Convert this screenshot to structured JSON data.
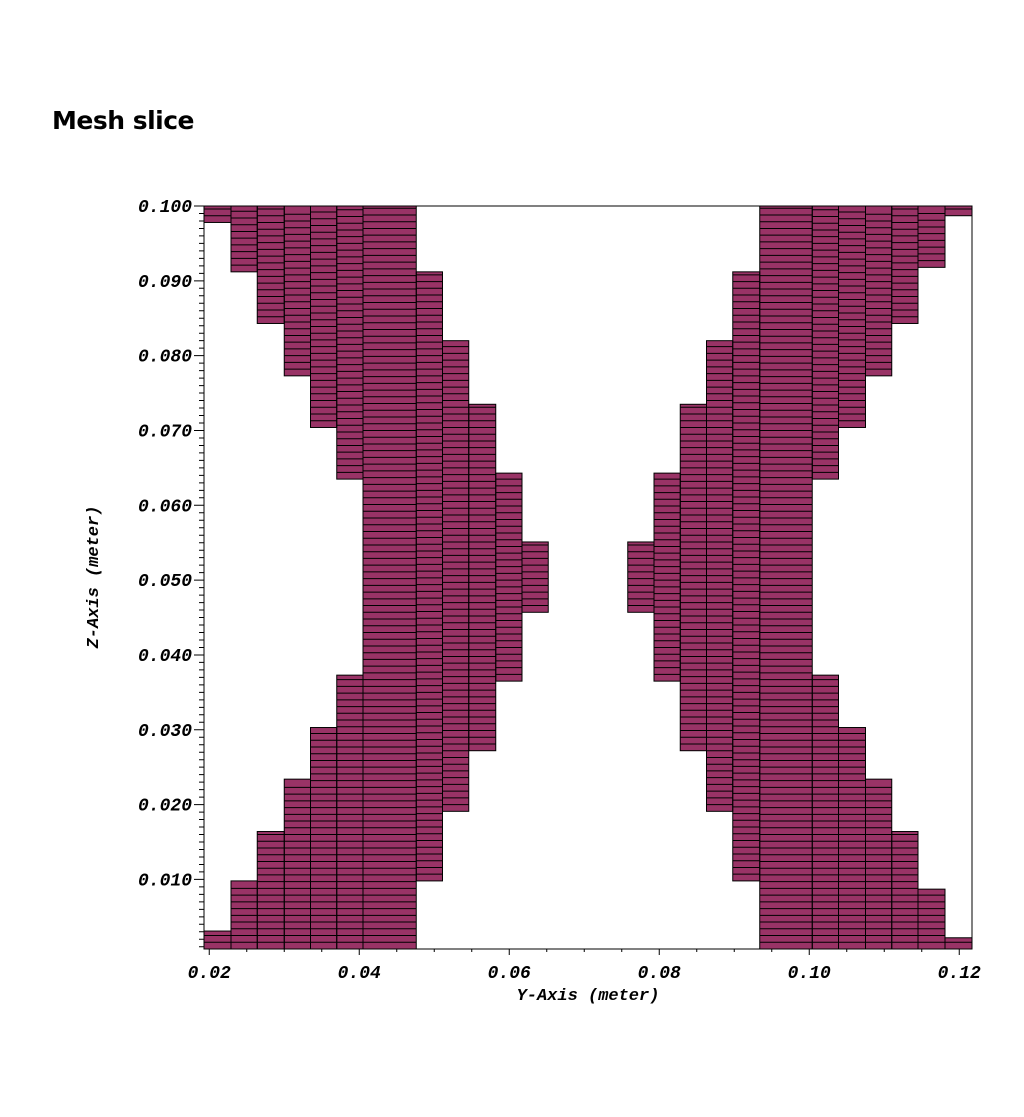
{
  "title": "Mesh slice",
  "chart_data": {
    "type": "mesh",
    "xlabel": "Y-Axis (meter)",
    "ylabel": "Z-Axis (meter)",
    "xlim": [
      0.0193,
      0.1217
    ],
    "ylim": [
      0.0007,
      0.1
    ],
    "x_ticks": [
      0.02,
      0.04,
      0.06,
      0.08,
      0.1,
      0.12
    ],
    "x_tick_labels": [
      "0.02",
      "0.04",
      "0.06",
      "0.08",
      "0.10",
      "0.12"
    ],
    "y_ticks": [
      0.01,
      0.02,
      0.03,
      0.04,
      0.05,
      0.06,
      0.07,
      0.08,
      0.09,
      0.1
    ],
    "y_tick_labels": [
      "0.010",
      "0.020",
      "0.030",
      "0.040",
      "0.050",
      "0.060",
      "0.070",
      "0.080",
      "0.090",
      "0.100"
    ],
    "fill_color": "#993366",
    "edge_color": "#000000",
    "row_height": 0.0009,
    "column_edges": [
      0.0193,
      0.0229,
      0.0264,
      0.03,
      0.0335,
      0.037,
      0.0405,
      0.0441,
      0.0476,
      0.0511,
      0.0546,
      0.0582,
      0.0617,
      0.0652,
      0.0758,
      0.0793,
      0.0828,
      0.0863,
      0.0898,
      0.0934,
      0.0969,
      0.1004,
      0.1039,
      0.1075,
      0.111,
      0.1145,
      0.1181,
      0.1217
    ],
    "regions": [
      {
        "y": [
          0.0193,
          0.0229
        ],
        "z": [
          [
            0.0007,
            0.0031
          ],
          [
            0.0978,
            0.1
          ]
        ]
      },
      {
        "y": [
          0.0229,
          0.0264
        ],
        "z": [
          [
            0.0007,
            0.0098
          ],
          [
            0.0912,
            0.1
          ]
        ]
      },
      {
        "y": [
          0.0264,
          0.03
        ],
        "z": [
          [
            0.0007,
            0.0164
          ],
          [
            0.0843,
            0.1
          ]
        ]
      },
      {
        "y": [
          0.03,
          0.0335
        ],
        "z": [
          [
            0.0007,
            0.0234
          ],
          [
            0.0773,
            0.1
          ]
        ]
      },
      {
        "y": [
          0.0335,
          0.037
        ],
        "z": [
          [
            0.0007,
            0.0303
          ],
          [
            0.0704,
            0.1
          ]
        ]
      },
      {
        "y": [
          0.037,
          0.0405
        ],
        "z": [
          [
            0.0007,
            0.0373
          ],
          [
            0.0635,
            0.1
          ]
        ]
      },
      {
        "y": [
          0.0405,
          0.0476
        ],
        "z": [
          [
            0.0007,
            0.1
          ]
        ]
      },
      {
        "y": [
          0.0476,
          0.0511
        ],
        "z": [
          [
            0.0098,
            0.0912
          ]
        ]
      },
      {
        "y": [
          0.0511,
          0.0546
        ],
        "z": [
          [
            0.0191,
            0.082
          ]
        ]
      },
      {
        "y": [
          0.0546,
          0.0582
        ],
        "z": [
          [
            0.0272,
            0.0735
          ]
        ]
      },
      {
        "y": [
          0.0582,
          0.0617
        ],
        "z": [
          [
            0.0365,
            0.0643
          ]
        ]
      },
      {
        "y": [
          0.0617,
          0.0652
        ],
        "z": [
          [
            0.0457,
            0.0551
          ]
        ]
      },
      {
        "y": [
          0.0758,
          0.0793
        ],
        "z": [
          [
            0.0457,
            0.0551
          ]
        ]
      },
      {
        "y": [
          0.0793,
          0.0828
        ],
        "z": [
          [
            0.0365,
            0.0643
          ]
        ]
      },
      {
        "y": [
          0.0828,
          0.0863
        ],
        "z": [
          [
            0.0272,
            0.0735
          ]
        ]
      },
      {
        "y": [
          0.0863,
          0.0898
        ],
        "z": [
          [
            0.0191,
            0.082
          ]
        ]
      },
      {
        "y": [
          0.0898,
          0.0934
        ],
        "z": [
          [
            0.0098,
            0.0912
          ]
        ]
      },
      {
        "y": [
          0.0934,
          0.1004
        ],
        "z": [
          [
            0.0007,
            0.1
          ]
        ]
      },
      {
        "y": [
          0.1004,
          0.1039
        ],
        "z": [
          [
            0.0007,
            0.0373
          ],
          [
            0.0635,
            0.1
          ]
        ]
      },
      {
        "y": [
          0.1039,
          0.1075
        ],
        "z": [
          [
            0.0007,
            0.0303
          ],
          [
            0.0704,
            0.1
          ]
        ]
      },
      {
        "y": [
          0.1075,
          0.111
        ],
        "z": [
          [
            0.0007,
            0.0234
          ],
          [
            0.0773,
            0.1
          ]
        ]
      },
      {
        "y": [
          0.111,
          0.1145
        ],
        "z": [
          [
            0.0007,
            0.0164
          ],
          [
            0.0843,
            0.1
          ]
        ]
      },
      {
        "y": [
          0.1145,
          0.1181
        ],
        "z": [
          [
            0.0007,
            0.0087
          ],
          [
            0.0918,
            0.1
          ]
        ]
      },
      {
        "y": [
          0.1181,
          0.1217
        ],
        "z": [
          [
            0.0007,
            0.0022
          ],
          [
            0.0987,
            0.1
          ]
        ]
      }
    ]
  }
}
